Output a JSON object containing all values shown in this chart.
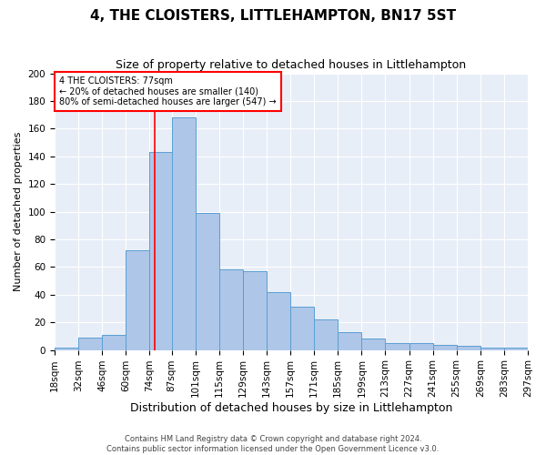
{
  "title": "4, THE CLOISTERS, LITTLEHAMPTON, BN17 5ST",
  "subtitle": "Size of property relative to detached houses in Littlehampton",
  "xlabel": "Distribution of detached houses by size in Littlehampton",
  "ylabel": "Number of detached properties",
  "bin_edges": [
    18,
    32,
    46,
    60,
    74,
    87,
    101,
    115,
    129,
    143,
    157,
    171,
    185,
    199,
    213,
    227,
    241,
    255,
    269,
    283,
    297
  ],
  "counts": [
    2,
    9,
    11,
    72,
    143,
    168,
    99,
    58,
    57,
    42,
    31,
    22,
    13,
    8,
    5,
    5,
    4,
    3,
    2,
    2
  ],
  "bar_color": "#aec6e8",
  "bar_edge_color": "#5a9fd4",
  "vline_x": 77,
  "vline_color": "red",
  "annotation_text": "4 THE CLOISTERS: 77sqm\n← 20% of detached houses are smaller (140)\n80% of semi-detached houses are larger (547) →",
  "annotation_box_color": "white",
  "annotation_box_edge": "red",
  "ylim": [
    0,
    200
  ],
  "yticks": [
    0,
    20,
    40,
    60,
    80,
    100,
    120,
    140,
    160,
    180,
    200
  ],
  "background_color": "#e8eef7",
  "grid_color": "white",
  "footer": "Contains HM Land Registry data © Crown copyright and database right 2024.\nContains public sector information licensed under the Open Government Licence v3.0.",
  "title_fontsize": 11,
  "subtitle_fontsize": 9,
  "xlabel_fontsize": 9,
  "ylabel_fontsize": 8,
  "tick_fontsize": 7.5,
  "footer_fontsize": 6
}
